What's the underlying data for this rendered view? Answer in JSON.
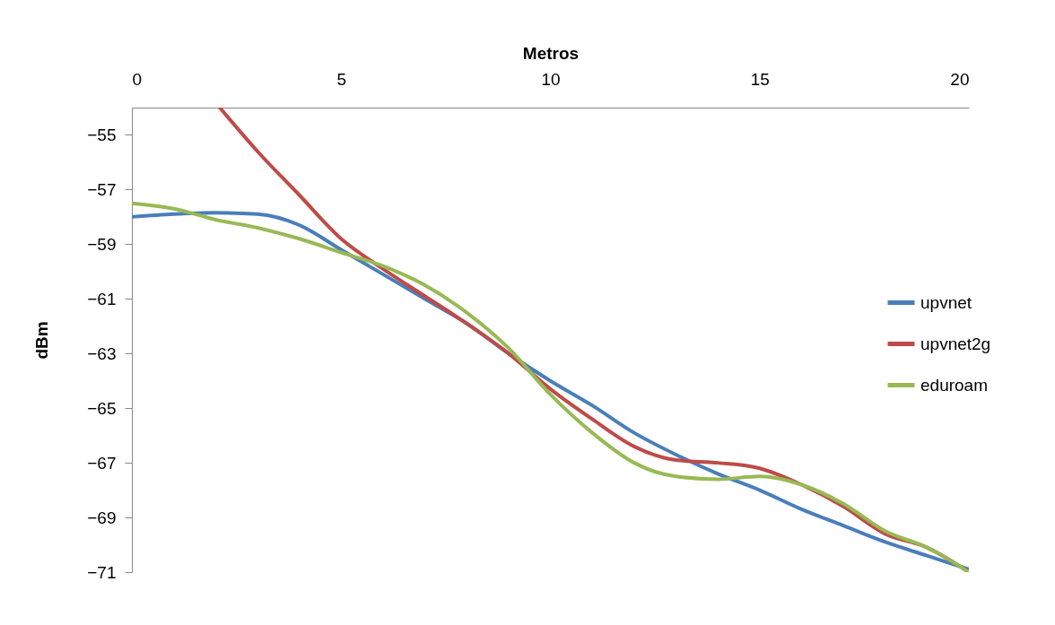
{
  "chart_data": {
    "type": "line",
    "xlabel": "Metros",
    "ylabel": "dBm",
    "x": [
      0,
      1,
      2,
      3,
      4,
      5,
      6,
      7,
      8,
      9,
      10,
      11,
      12,
      13,
      14,
      15,
      16,
      17,
      18,
      19,
      20
    ],
    "xlim": [
      0,
      20
    ],
    "xticks": [
      0,
      5,
      10,
      15,
      20
    ],
    "ylim": [
      -71,
      -54
    ],
    "yticks": [
      -55,
      -57,
      -59,
      -61,
      -63,
      -65,
      -67,
      -69,
      -71
    ],
    "grid": false,
    "legend": "right",
    "marker": "none",
    "line_style": "solid",
    "series": [
      {
        "name": "upvnet",
        "color": "#4a7ebb",
        "values": [
          -58.0,
          -57.9,
          -57.85,
          -57.9,
          -58.3,
          -59.2,
          -60.1,
          -61.0,
          -61.9,
          -63.0,
          -64.0,
          -64.9,
          -65.9,
          -66.7,
          -67.4,
          -68.0,
          -68.7,
          -69.3,
          -69.9,
          -70.4,
          -70.9
        ]
      },
      {
        "name": "upvnet2g",
        "color": "#be4b48",
        "x": [
          2.1,
          3,
          4,
          5,
          6,
          7,
          8,
          9,
          10,
          11,
          12,
          13,
          14,
          15,
          16,
          17,
          18,
          19,
          20
        ],
        "values": [
          -54.0,
          -55.6,
          -57.2,
          -58.8,
          -59.9,
          -60.9,
          -61.9,
          -63.0,
          -64.3,
          -65.4,
          -66.4,
          -66.9,
          -67.0,
          -67.2,
          -67.8,
          -68.6,
          -69.6,
          -70.1,
          -71.0
        ]
      },
      {
        "name": "eduroam",
        "color": "#98b954",
        "values": [
          -57.5,
          -57.7,
          -58.1,
          -58.4,
          -58.8,
          -59.3,
          -59.8,
          -60.5,
          -61.5,
          -62.8,
          -64.5,
          -65.9,
          -67.0,
          -67.5,
          -67.6,
          -67.5,
          -67.8,
          -68.5,
          -69.5,
          -70.1,
          -71.0
        ]
      }
    ]
  }
}
